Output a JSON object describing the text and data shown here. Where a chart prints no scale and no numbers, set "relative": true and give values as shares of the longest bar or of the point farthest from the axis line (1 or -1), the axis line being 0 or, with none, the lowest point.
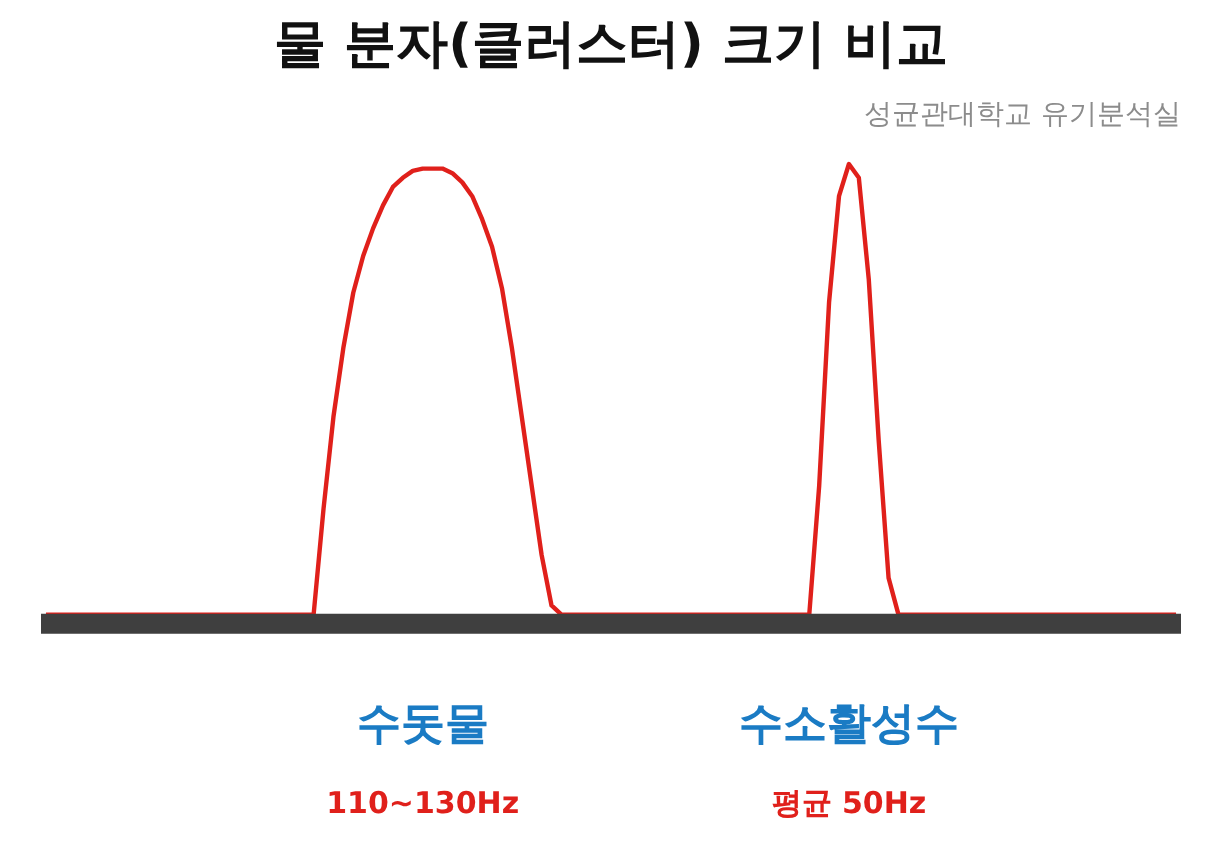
{
  "chart_data": {
    "type": "line",
    "title": "물 분자(클러스터) 크기 비교",
    "subtitle": "성균관대학교 유기분석실",
    "relative": true,
    "color": "#e0201b",
    "grid": false,
    "categories": [
      null,
      null,
      null,
      null,
      null,
      null,
      null,
      null,
      null,
      null,
      null,
      null,
      null,
      null,
      null,
      null,
      null,
      null,
      null,
      null,
      null,
      null,
      null,
      null,
      null,
      null,
      null,
      null,
      null,
      null,
      null,
      null,
      null,
      null,
      null,
      null,
      null,
      null,
      null,
      null,
      null,
      null,
      null,
      null,
      null,
      null,
      null,
      null,
      null,
      null,
      null,
      null,
      null,
      null,
      null,
      null,
      null,
      null,
      null,
      null,
      null,
      null,
      null,
      null,
      null,
      null,
      null,
      null,
      null,
      null,
      null,
      null,
      null,
      null,
      null,
      null,
      null,
      null,
      null,
      null,
      null,
      null,
      null,
      null,
      null,
      null,
      null,
      null,
      null,
      null,
      null,
      null,
      null,
      null,
      null,
      null,
      null,
      null,
      null,
      null,
      null,
      null,
      null,
      null,
      null,
      null,
      null,
      null,
      null,
      null,
      null,
      null,
      null,
      null,
      null
    ],
    "values": [
      0.02,
      0.02,
      0.02,
      0.02,
      0.02,
      0.02,
      0.02,
      0.02,
      0.02,
      0.02,
      0.02,
      0.02,
      0.02,
      0.02,
      0.02,
      0.02,
      0.02,
      0.02,
      0.02,
      0.02,
      0.02,
      0.02,
      0.02,
      0.02,
      0.02,
      0.02,
      0.02,
      0.02,
      0.25,
      0.45,
      0.6,
      0.72,
      0.8,
      0.86,
      0.91,
      0.95,
      0.97,
      0.985,
      0.99,
      0.99,
      0.99,
      0.98,
      0.96,
      0.93,
      0.88,
      0.82,
      0.73,
      0.6,
      0.45,
      0.3,
      0.15,
      0.04,
      0.02,
      0.02,
      0.02,
      0.02,
      0.02,
      0.02,
      0.02,
      0.02,
      0.02,
      0.02,
      0.02,
      0.02,
      0.02,
      0.02,
      0.02,
      0.02,
      0.02,
      0.02,
      0.02,
      0.02,
      0.02,
      0.02,
      0.02,
      0.02,
      0.02,
      0.02,
      0.3,
      0.7,
      0.93,
      1,
      0.97,
      0.75,
      0.4,
      0.1,
      0.02,
      0.02,
      0.02,
      0.02,
      0.02,
      0.02,
      0.02,
      0.02,
      0.02,
      0.02,
      0.02,
      0.02,
      0.02,
      0.02,
      0.02,
      0.02,
      0.02,
      0.02,
      0.02,
      0.02,
      0.02,
      0.02,
      0.02,
      0.02,
      0.02,
      0.02,
      0.02,
      0.02,
      0.02
    ],
    "annotations": [
      "수돗물",
      "110~130Hz",
      "수소활성수",
      "평균 50Hz"
    ]
  }
}
